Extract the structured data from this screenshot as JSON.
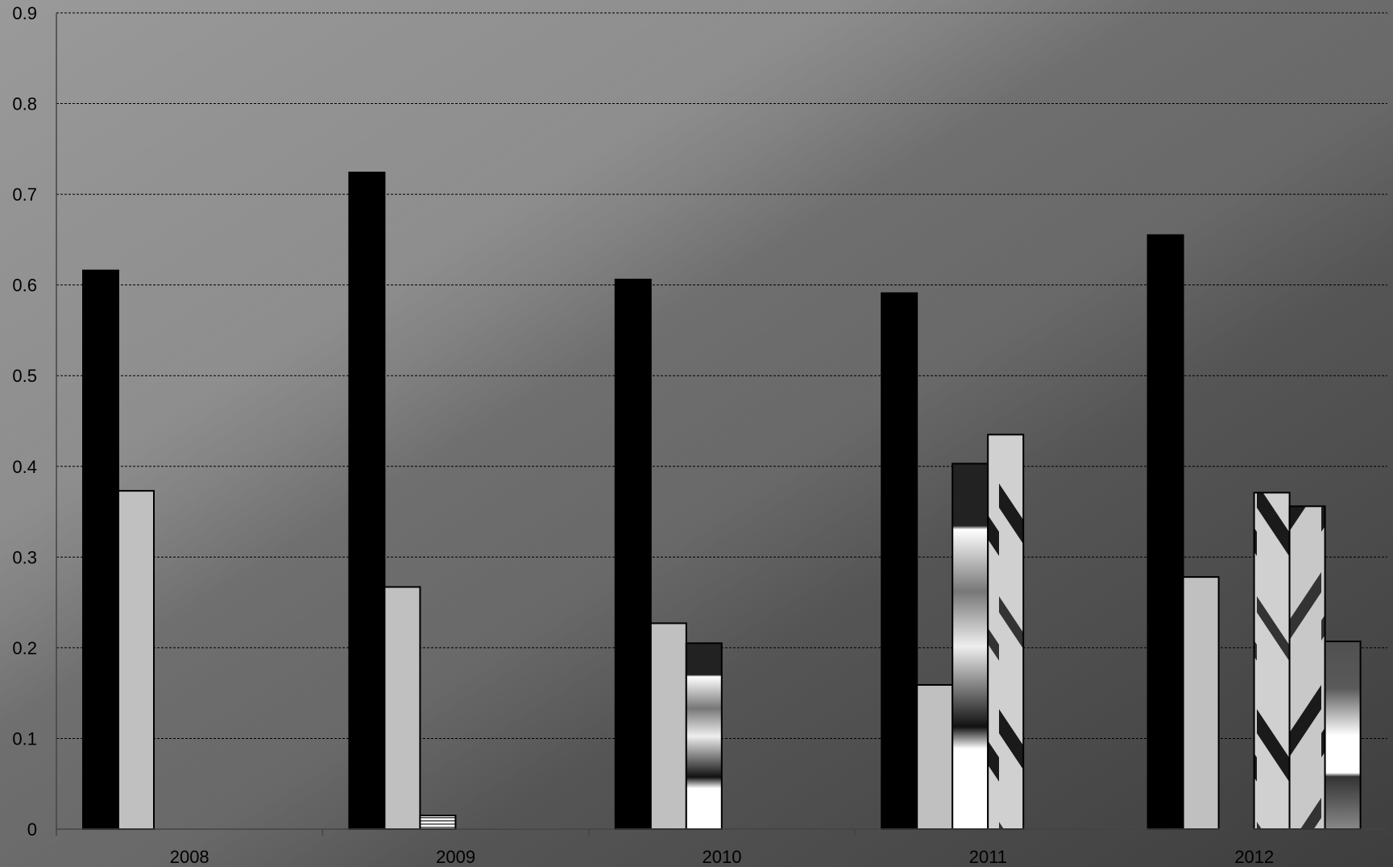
{
  "chart_data": {
    "type": "bar",
    "categories": [
      "2008",
      "2009",
      "2010",
      "2011",
      "2012"
    ],
    "series": [
      {
        "values": [
          0.616,
          0.724,
          0.606,
          0.591,
          0.655
        ],
        "color": "#000000"
      },
      {
        "values": [
          0.373,
          0.267,
          0.227,
          0.159,
          0.278
        ],
        "color": "#c0c0c0"
      },
      {
        "values": [
          0,
          0.015,
          0.205,
          0.403,
          0
        ],
        "color": "#ffffff"
      },
      {
        "values": [
          0,
          0,
          0,
          0.435,
          0.371
        ],
        "color": "#d0d0d0"
      },
      {
        "values": [
          0,
          0,
          0,
          0,
          0.356
        ],
        "color": "#c8c8c8"
      },
      {
        "values": [
          0,
          0,
          0,
          0,
          0.207
        ],
        "color": "#505050"
      }
    ],
    "yticks": [
      "0",
      "0.1",
      "0.2",
      "0.3",
      "0.4",
      "0.5",
      "0.6",
      "0.7",
      "0.8",
      "0.9"
    ],
    "ylim": [
      0,
      0.9
    ],
    "grid": true,
    "legend": "none",
    "title": "",
    "xlabel": "",
    "ylabel": ""
  }
}
